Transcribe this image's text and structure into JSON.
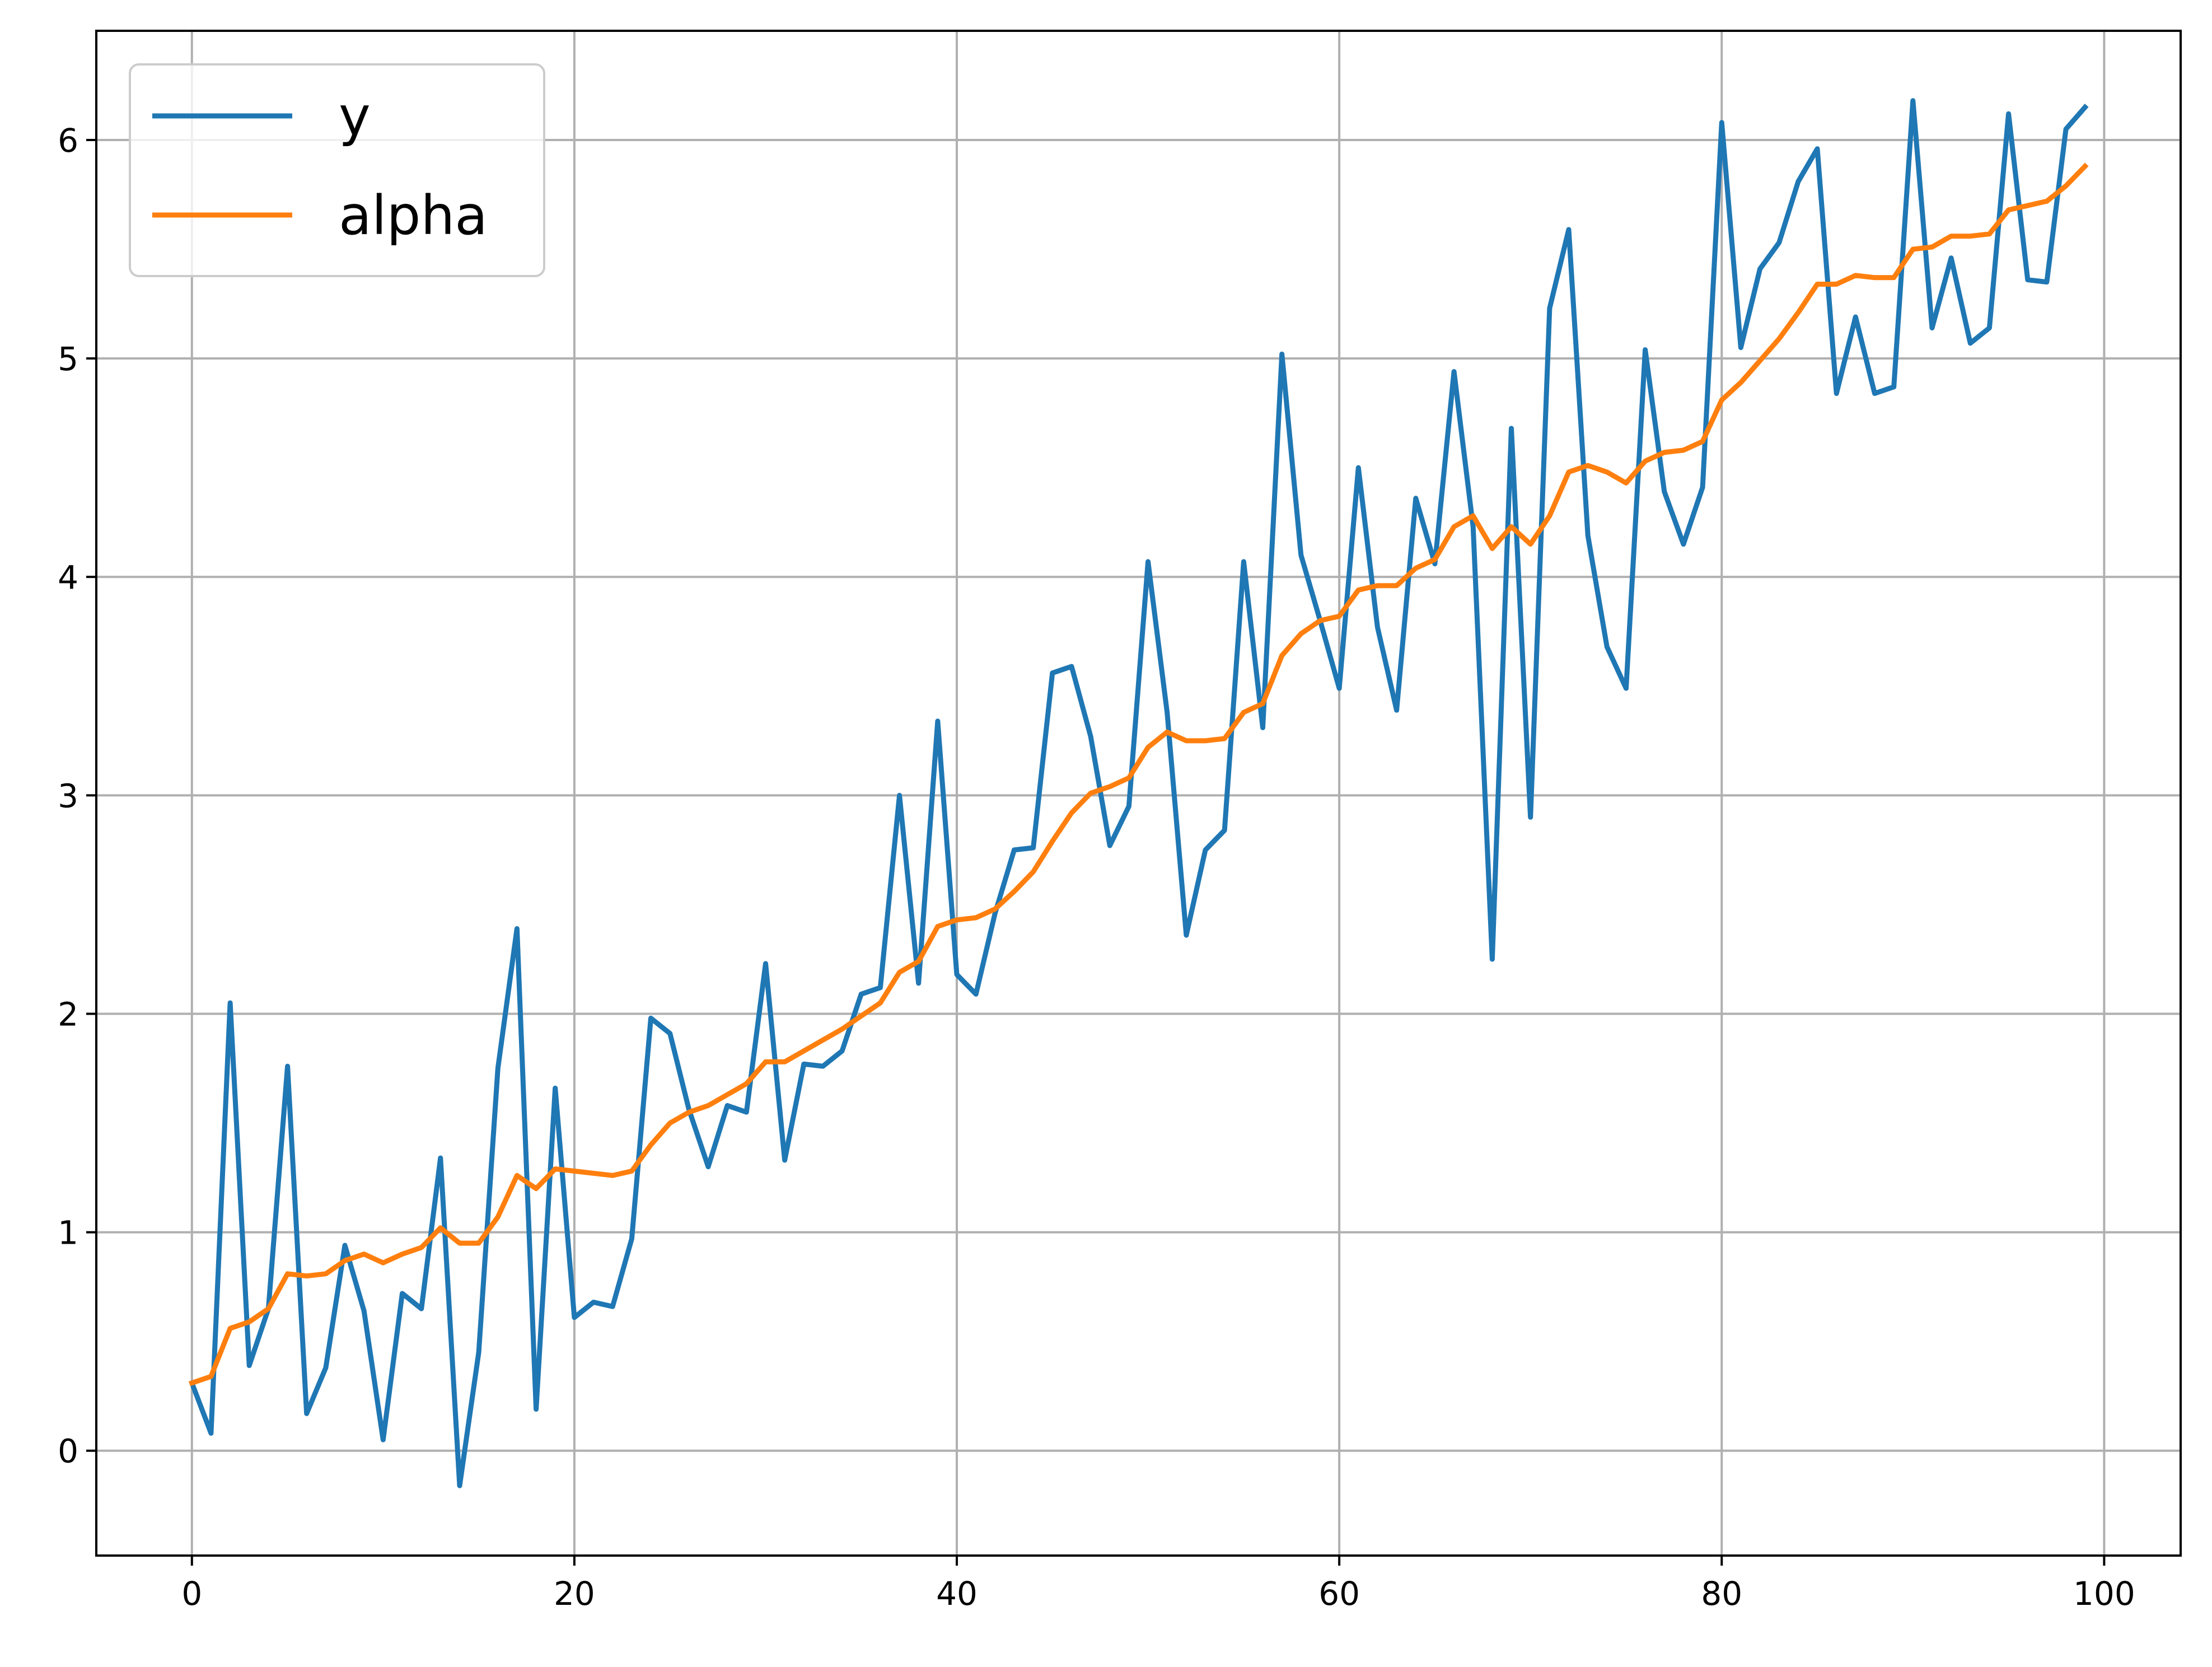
{
  "chart_data": {
    "type": "line",
    "title": "",
    "xlabel": "",
    "ylabel": "",
    "xlim": [
      -5,
      104
    ],
    "ylim": [
      -0.48,
      6.5
    ],
    "xticks": [
      0,
      20,
      40,
      60,
      80,
      100
    ],
    "yticks": [
      0,
      1,
      2,
      3,
      4,
      5,
      6
    ],
    "xtick_labels": [
      "0",
      "20",
      "40",
      "60",
      "80",
      "100"
    ],
    "ytick_labels": [
      "0",
      "1",
      "2",
      "3",
      "4",
      "5",
      "6"
    ],
    "grid": true,
    "legend": {
      "position": "top-left"
    },
    "x": [
      0,
      1,
      2,
      3,
      4,
      5,
      6,
      7,
      8,
      9,
      10,
      11,
      12,
      13,
      14,
      15,
      16,
      17,
      18,
      19,
      20,
      21,
      22,
      23,
      24,
      25,
      26,
      27,
      28,
      29,
      30,
      31,
      32,
      33,
      34,
      35,
      36,
      37,
      38,
      39,
      40,
      41,
      42,
      43,
      44,
      45,
      46,
      47,
      48,
      49,
      50,
      51,
      52,
      53,
      54,
      55,
      56,
      57,
      58,
      59,
      60,
      61,
      62,
      63,
      64,
      65,
      66,
      67,
      68,
      69,
      70,
      71,
      72,
      73,
      74,
      75,
      76,
      77,
      78,
      79,
      80,
      81,
      82,
      83,
      84,
      85,
      86,
      87,
      88,
      89,
      90,
      91,
      92,
      93,
      94,
      95,
      96,
      97,
      98,
      99
    ],
    "series": [
      {
        "name": "y",
        "color": "#1f77b4",
        "values": [
          0.31,
          0.08,
          2.05,
          0.39,
          0.65,
          1.76,
          0.17,
          0.38,
          0.94,
          0.64,
          0.05,
          0.72,
          0.65,
          1.34,
          -0.16,
          0.45,
          1.75,
          2.39,
          0.19,
          1.66,
          0.61,
          0.68,
          0.66,
          0.97,
          1.98,
          1.91,
          1.56,
          1.3,
          1.58,
          1.55,
          2.23,
          1.33,
          1.77,
          1.76,
          1.83,
          2.09,
          2.12,
          3.0,
          2.14,
          3.34,
          2.18,
          2.09,
          2.46,
          2.75,
          2.76,
          3.56,
          3.59,
          3.27,
          2.77,
          2.95,
          4.07,
          3.38,
          2.36,
          2.75,
          2.84,
          4.07,
          3.31,
          5.02,
          4.1,
          3.8,
          3.49,
          4.5,
          3.77,
          3.39,
          4.36,
          4.06,
          4.94,
          4.23,
          2.25,
          4.68,
          2.9,
          5.23,
          5.59,
          4.19,
          3.68,
          3.49,
          5.04,
          4.39,
          4.15,
          4.41,
          6.08,
          5.05,
          5.41,
          5.53,
          5.81,
          5.96,
          4.84,
          5.19,
          4.84,
          4.87,
          6.18,
          5.14,
          5.46,
          5.07,
          5.14,
          6.12,
          5.36,
          5.35,
          6.05,
          6.15
        ]
      },
      {
        "name": "alpha",
        "color": "#ff7f0e",
        "values": [
          0.31,
          0.34,
          0.56,
          0.59,
          0.65,
          0.81,
          0.8,
          0.81,
          0.87,
          0.9,
          0.86,
          0.9,
          0.93,
          1.02,
          0.95,
          0.95,
          1.07,
          1.26,
          1.2,
          1.29,
          1.28,
          1.27,
          1.26,
          1.28,
          1.4,
          1.5,
          1.55,
          1.58,
          1.63,
          1.68,
          1.78,
          1.78,
          1.83,
          1.88,
          1.93,
          1.99,
          2.05,
          2.19,
          2.24,
          2.4,
          2.43,
          2.44,
          2.48,
          2.56,
          2.65,
          2.79,
          2.92,
          3.01,
          3.04,
          3.08,
          3.22,
          3.29,
          3.25,
          3.25,
          3.26,
          3.38,
          3.42,
          3.64,
          3.74,
          3.8,
          3.82,
          3.94,
          3.96,
          3.96,
          4.04,
          4.08,
          4.23,
          4.28,
          4.13,
          4.23,
          4.15,
          4.28,
          4.48,
          4.51,
          4.48,
          4.43,
          4.53,
          4.57,
          4.58,
          4.62,
          4.81,
          4.89,
          4.99,
          5.09,
          5.21,
          5.34,
          5.34,
          5.38,
          5.37,
          5.37,
          5.5,
          5.51,
          5.56,
          5.56,
          5.57,
          5.68,
          5.7,
          5.72,
          5.79,
          5.88
        ]
      }
    ]
  }
}
